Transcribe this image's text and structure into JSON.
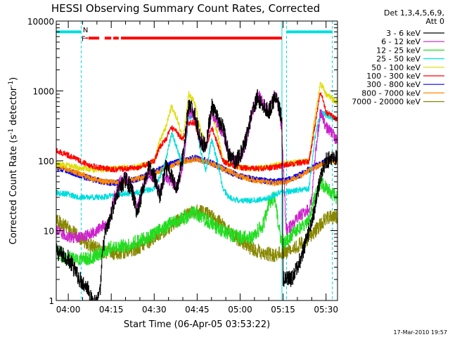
{
  "chart_data": {
    "type": "line",
    "title": "HESSI Observing Summary Count Rates, Corrected",
    "xlabel": "Start Time (06-Apr-05 03:53:22)",
    "ylabel": "Corrected Count Rate (s",
    "ylabel_sup": "-1",
    "ylabel_mid": " detector",
    "ylabel_end": ")",
    "footer": "17-Mar-2010 19:57",
    "y_scale": "log",
    "ylim": [
      1,
      10000
    ],
    "xlim_minutes": [
      235.8,
      334.0
    ],
    "x_ticks": [
      {
        "minute": 240,
        "label": "04:00"
      },
      {
        "minute": 255,
        "label": "04:15"
      },
      {
        "minute": 270,
        "label": "04:30"
      },
      {
        "minute": 285,
        "label": "04:45"
      },
      {
        "minute": 300,
        "label": "05:00"
      },
      {
        "minute": 315,
        "label": "05:15"
      },
      {
        "minute": 330,
        "label": "05:30"
      }
    ],
    "y_ticks": [
      {
        "value": 1,
        "label": "1"
      },
      {
        "value": 10,
        "label": "10"
      },
      {
        "value": 100,
        "label": "100"
      },
      {
        "value": 1000,
        "label": "1000"
      },
      {
        "value": 10000,
        "label": "10000"
      }
    ],
    "legend_header": [
      "Det 1,3,4,5,6,9,",
      "Att 0"
    ],
    "legend_position": "right",
    "series": [
      {
        "name": "3 - 6 keV",
        "color": "#000000",
        "x": [
          235.8,
          240,
          244,
          247,
          248,
          250,
          251,
          252,
          253,
          254,
          256,
          258,
          260,
          262,
          264,
          266,
          268,
          270,
          272,
          274,
          276,
          278,
          280,
          282,
          284,
          286,
          288,
          290,
          292,
          294,
          296,
          298,
          300,
          302,
          304,
          306,
          308,
          310,
          312,
          313,
          314.5,
          315,
          318,
          320,
          322,
          324,
          326,
          328,
          330,
          332,
          333.5
        ],
        "y": [
          5,
          4,
          2,
          1.5,
          1,
          1,
          1.2,
          5,
          10,
          12,
          25,
          40,
          55,
          40,
          18,
          40,
          80,
          60,
          30,
          80,
          60,
          40,
          120,
          600,
          500,
          200,
          160,
          600,
          400,
          300,
          120,
          100,
          120,
          200,
          500,
          800,
          600,
          500,
          800,
          700,
          400,
          2,
          2,
          3,
          5,
          10,
          20,
          60,
          100,
          110,
          110
        ]
      },
      {
        "name": "6 - 12 keV",
        "color": "#cc22cc",
        "x": [
          235.8,
          240,
          244,
          248,
          250,
          252,
          254,
          256,
          258,
          260,
          262,
          264,
          266,
          268,
          270,
          272,
          274,
          276,
          278,
          280,
          282,
          284,
          286,
          288,
          290,
          292,
          294,
          296,
          298,
          300,
          302,
          304,
          306,
          308,
          310,
          312,
          313,
          314.5,
          316,
          318,
          320,
          322,
          324,
          325,
          326,
          328,
          330,
          332,
          333.5
        ],
        "y": [
          10,
          8,
          8,
          9,
          10,
          12,
          12,
          30,
          50,
          60,
          45,
          20,
          40,
          70,
          55,
          35,
          60,
          50,
          40,
          90,
          500,
          450,
          200,
          150,
          500,
          350,
          250,
          120,
          100,
          110,
          180,
          450,
          900,
          700,
          500,
          900,
          700,
          300,
          10,
          12,
          15,
          18,
          20,
          30,
          100,
          500,
          300,
          250,
          200
        ]
      },
      {
        "name": "12 - 25 keV",
        "color": "#22dd22",
        "x": [
          235.8,
          240,
          244,
          248,
          252,
          256,
          260,
          264,
          268,
          272,
          276,
          280,
          284,
          288,
          292,
          296,
          300,
          304,
          308,
          310,
          312,
          314,
          315,
          316,
          318,
          320,
          322,
          324,
          326,
          328,
          330,
          332,
          333.5
        ],
        "y": [
          5,
          4,
          4,
          4,
          5,
          6,
          6,
          7,
          8,
          10,
          13,
          15,
          18,
          14,
          11,
          9,
          8,
          8,
          12,
          25,
          30,
          8,
          6,
          7,
          9,
          10,
          12,
          14,
          30,
          50,
          40,
          35,
          30
        ]
      },
      {
        "name": "25 - 50 keV",
        "color": "#00dddd",
        "x": [
          235.8,
          240,
          244,
          248,
          252,
          256,
          260,
          264,
          268,
          270,
          272,
          274,
          276,
          278,
          280,
          282,
          284,
          286,
          288,
          290,
          292,
          294,
          296,
          298,
          300,
          304,
          308,
          312,
          314,
          316,
          320,
          324,
          326,
          328,
          330,
          333.5
        ],
        "y": [
          35,
          33,
          30,
          30,
          30,
          32,
          34,
          35,
          38,
          40,
          60,
          100,
          250,
          150,
          80,
          400,
          500,
          150,
          70,
          200,
          100,
          40,
          30,
          28,
          27,
          27,
          28,
          32,
          36,
          36,
          38,
          40,
          200,
          500,
          450,
          400
        ]
      },
      {
        "name": "50 - 100 keV",
        "color": "#dddd00",
        "x": [
          235.8,
          240,
          244,
          248,
          252,
          256,
          260,
          264,
          268,
          270,
          272,
          274,
          276,
          278,
          280,
          282,
          284,
          286,
          288,
          290,
          292,
          294,
          296,
          298,
          300,
          304,
          308,
          312,
          314,
          316,
          320,
          324,
          326,
          328,
          330,
          333.5
        ],
        "y": [
          90,
          85,
          80,
          75,
          75,
          78,
          80,
          82,
          90,
          100,
          200,
          300,
          600,
          400,
          200,
          900,
          700,
          300,
          150,
          500,
          250,
          100,
          90,
          85,
          80,
          78,
          80,
          85,
          90,
          92,
          95,
          100,
          400,
          1300,
          900,
          700
        ]
      },
      {
        "name": "100 - 300 keV",
        "color": "#ff0000",
        "x": [
          235.8,
          240,
          244,
          248,
          252,
          256,
          260,
          264,
          268,
          270,
          272,
          274,
          276,
          278,
          280,
          282,
          284,
          286,
          288,
          290,
          292,
          294,
          296,
          298,
          300,
          304,
          308,
          312,
          314,
          316,
          320,
          324,
          326,
          328,
          330,
          333.5
        ],
        "y": [
          140,
          120,
          100,
          85,
          78,
          75,
          77,
          80,
          90,
          100,
          160,
          200,
          300,
          250,
          200,
          350,
          350,
          200,
          150,
          300,
          180,
          100,
          90,
          85,
          80,
          78,
          78,
          80,
          85,
          88,
          92,
          98,
          300,
          1000,
          500,
          400
        ]
      },
      {
        "name": "300 - 800 keV",
        "color": "#0000ff",
        "x": [
          235.8,
          240,
          244,
          248,
          252,
          256,
          260,
          264,
          268,
          272,
          276,
          280,
          284,
          288,
          292,
          296,
          300,
          304,
          308,
          312,
          316,
          320,
          324,
          328,
          330,
          333.5
        ],
        "y": [
          80,
          72,
          62,
          55,
          50,
          48,
          50,
          55,
          62,
          75,
          90,
          100,
          110,
          100,
          85,
          70,
          60,
          55,
          52,
          50,
          52,
          60,
          75,
          90,
          100,
          105
        ]
      },
      {
        "name": "800 - 7000 keV",
        "color": "#ff8800",
        "x": [
          235.8,
          240,
          244,
          248,
          252,
          256,
          260,
          264,
          268,
          272,
          276,
          280,
          284,
          288,
          292,
          296,
          300,
          304,
          308,
          312,
          316,
          320,
          324,
          328,
          330,
          333.5
        ],
        "y": [
          85,
          75,
          65,
          56,
          51,
          49,
          50,
          55,
          62,
          72,
          85,
          98,
          105,
          98,
          83,
          70,
          60,
          54,
          50,
          48,
          50,
          58,
          72,
          88,
          95,
          100
        ]
      },
      {
        "name": "7000 - 20000 keV",
        "color": "#888800",
        "x": [
          235.8,
          240,
          244,
          248,
          252,
          256,
          260,
          264,
          268,
          272,
          276,
          280,
          284,
          288,
          292,
          296,
          300,
          304,
          308,
          312,
          316,
          320,
          324,
          328,
          330,
          333.5
        ],
        "y": [
          14,
          11,
          8,
          6,
          5,
          4.8,
          5,
          5.5,
          7,
          9,
          12,
          16,
          19,
          18,
          14,
          10,
          7,
          5.5,
          4.8,
          4.5,
          5,
          6,
          8,
          12,
          15,
          16
        ]
      }
    ],
    "annotations": {
      "vertical_lines": [
        {
          "minute": 235.8,
          "color": "#00dddd",
          "style": "solid"
        },
        {
          "minute": 244.5,
          "color": "#00dddd",
          "style": "dashed"
        },
        {
          "minute": 314.6,
          "color": "#00dddd",
          "style": "solid"
        },
        {
          "minute": 316.2,
          "color": "#00dddd",
          "style": "dashed"
        },
        {
          "minute": 332.2,
          "color": "#00dddd",
          "style": "dashed"
        }
      ],
      "night_bars": [
        {
          "from": 235.8,
          "to": 244.5,
          "y": 7000
        },
        {
          "from": 316.2,
          "to": 332.2,
          "y": 7000
        }
      ],
      "night_label": {
        "text": "N",
        "minute": 245.1,
        "y": 7600
      },
      "flare_bar": {
        "from": 247.1,
        "to": 314.6,
        "y": 5700,
        "gaps": [
          [
            250.8,
            252.7
          ],
          [
            255.0,
            255.7
          ],
          [
            257.6,
            258.4
          ]
        ],
        "label": "F",
        "label_minute": 244.6,
        "dots": [
          246.2,
          246.7
        ]
      }
    }
  }
}
